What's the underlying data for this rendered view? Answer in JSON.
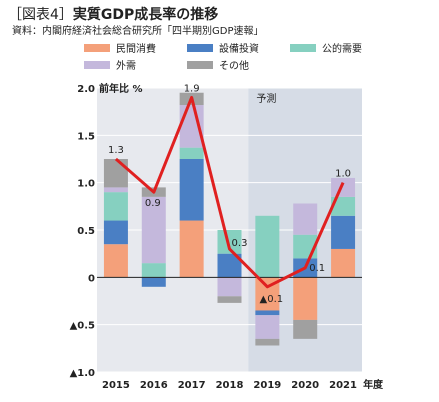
{
  "title": {
    "bracket": "［図表4］",
    "main": "実質GDP成長率の推移"
  },
  "source": "資料：内閣府経済社会総合研究所「四半期別GDP速報」",
  "colors": {
    "private_consumption": "#f4a07a",
    "capital_investment": "#4a7fc4",
    "public_demand": "#86d0c0",
    "external_demand": "#c4b8dc",
    "other": "#a0a0a0",
    "line": "#e02020",
    "forecast_bg": "#d6dce6",
    "plot_bg": "#e7e9ee"
  },
  "chart_data": {
    "type": "bar",
    "stacked": true,
    "ylabel": "前年比 %",
    "forecast_label": "予測",
    "forecast_start": "2019",
    "x_suffix": "年度",
    "categories": [
      "2015",
      "2016",
      "2017",
      "2018",
      "2019",
      "2020",
      "2021"
    ],
    "ylim": [
      -1.0,
      2.0
    ],
    "yticks": [
      {
        "v": 2.0,
        "label": "2.0"
      },
      {
        "v": 1.5,
        "label": "1.5"
      },
      {
        "v": 1.0,
        "label": "1.0"
      },
      {
        "v": 0.5,
        "label": "0.5"
      },
      {
        "v": 0,
        "label": "0"
      },
      {
        "v": -0.5,
        "label": "▲0.5"
      },
      {
        "v": -1.0,
        "label": "▲1.0"
      }
    ],
    "series": [
      {
        "name": "民間消費",
        "key": "private_consumption",
        "values": [
          0.35,
          0.0,
          0.6,
          0.0,
          -0.35,
          -0.45,
          0.3
        ]
      },
      {
        "name": "設備投資",
        "key": "capital_investment",
        "values": [
          0.25,
          -0.1,
          0.65,
          0.25,
          -0.05,
          0.2,
          0.35
        ]
      },
      {
        "name": "公的需要",
        "key": "public_demand",
        "values": [
          0.3,
          0.15,
          0.12,
          0.25,
          0.65,
          0.25,
          0.2
        ]
      },
      {
        "name": "外需",
        "key": "external_demand",
        "values": [
          0.05,
          0.7,
          0.45,
          -0.2,
          -0.25,
          0.33,
          0.2
        ]
      },
      {
        "name": "その他",
        "key": "other",
        "values": [
          0.3,
          0.1,
          0.13,
          -0.07,
          -0.07,
          -0.2,
          0.0
        ]
      }
    ],
    "total": {
      "values": [
        1.25,
        0.9,
        1.9,
        0.3,
        -0.1,
        0.1,
        1.0
      ],
      "labels": [
        "1.3",
        "0.9",
        "1.9",
        "0.3",
        "▲0.1",
        "0.1",
        "1.0"
      ]
    }
  }
}
